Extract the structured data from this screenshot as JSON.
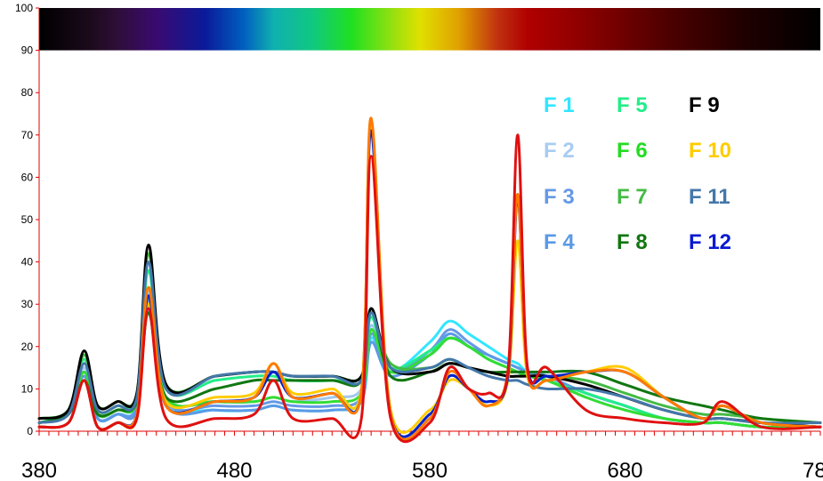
{
  "chart_data": {
    "type": "line",
    "title": "",
    "xlabel": "",
    "ylabel": "",
    "xlim": [
      380,
      780
    ],
    "ylim": [
      0,
      100
    ],
    "x_ticks": [
      "380",
      "480",
      "580",
      "680",
      "780"
    ],
    "y_ticks": [
      "0",
      "10",
      "20",
      "30",
      "40",
      "50",
      "60",
      "70",
      "80",
      "90",
      "100"
    ],
    "grid": false,
    "legend_position": "top-right",
    "spectrum_band": {
      "y_range": [
        90,
        100
      ],
      "stops": [
        {
          "x": 380,
          "color": "#000000"
        },
        {
          "x": 405,
          "color": "#1a0a1a"
        },
        {
          "x": 420,
          "color": "#2e0e38"
        },
        {
          "x": 440,
          "color": "#3a0a70"
        },
        {
          "x": 465,
          "color": "#0a1a9a"
        },
        {
          "x": 485,
          "color": "#0060c0"
        },
        {
          "x": 500,
          "color": "#10b0b0"
        },
        {
          "x": 520,
          "color": "#10c880"
        },
        {
          "x": 540,
          "color": "#20e020"
        },
        {
          "x": 560,
          "color": "#90e010"
        },
        {
          "x": 575,
          "color": "#e0e000"
        },
        {
          "x": 595,
          "color": "#e0a000"
        },
        {
          "x": 615,
          "color": "#c03010"
        },
        {
          "x": 630,
          "color": "#b00000"
        },
        {
          "x": 660,
          "color": "#8a0000"
        },
        {
          "x": 700,
          "color": "#500000"
        },
        {
          "x": 740,
          "color": "#200000"
        },
        {
          "x": 780,
          "color": "#000000"
        }
      ]
    },
    "x": [
      380,
      395,
      403,
      410,
      420,
      430,
      436,
      445,
      470,
      490,
      500,
      510,
      530,
      545,
      550,
      560,
      580,
      590,
      600,
      610,
      620,
      625,
      630,
      640,
      660,
      680,
      700,
      720,
      730,
      750,
      780
    ],
    "series": [
      {
        "name": "F 1",
        "color": "#33e6ff",
        "values": [
          2,
          4,
          14,
          3,
          4,
          6,
          30,
          7,
          5,
          5,
          6,
          5,
          5,
          7,
          22,
          14,
          21,
          26,
          23,
          20,
          17,
          16,
          14,
          13,
          9,
          6,
          3,
          2,
          2,
          1,
          1
        ]
      },
      {
        "name": "F 2",
        "color": "#a0c8f0",
        "values": [
          2,
          4,
          15,
          4,
          5,
          7,
          33,
          8,
          7,
          7,
          8,
          7,
          8,
          10,
          25,
          15,
          18,
          22,
          20,
          17,
          15,
          14,
          13,
          12,
          8,
          5,
          3,
          2,
          2,
          1,
          1
        ]
      },
      {
        "name": "F 3",
        "color": "#6699e6",
        "values": [
          2,
          4,
          14,
          3,
          4,
          6,
          31,
          7,
          6,
          6,
          7,
          6,
          6,
          8,
          23,
          14,
          19,
          24,
          21,
          18,
          16,
          15,
          14,
          13,
          9,
          6,
          3,
          2,
          2,
          1,
          1
        ]
      },
      {
        "name": "F 4",
        "color": "#5a9ae6",
        "values": [
          2,
          4,
          13,
          3,
          4,
          5,
          29,
          6,
          5,
          5,
          6,
          5,
          5,
          7,
          21,
          13,
          18,
          23,
          20,
          18,
          16,
          15,
          14,
          13,
          9,
          6,
          3,
          2,
          2,
          1,
          1
        ]
      },
      {
        "name": "F 5",
        "color": "#22ee88",
        "values": [
          2,
          5,
          17,
          5,
          6,
          8,
          38,
          10,
          12,
          13,
          13,
          12,
          12,
          13,
          27,
          15,
          19,
          22,
          20,
          17,
          15,
          14,
          13,
          12,
          9,
          6,
          3,
          2,
          2,
          1,
          1
        ]
      },
      {
        "name": "F 6",
        "color": "#33dd33",
        "values": [
          2,
          4,
          14,
          4,
          5,
          7,
          32,
          8,
          7,
          7,
          8,
          7,
          7,
          9,
          24,
          14,
          18,
          22,
          20,
          17,
          15,
          14,
          13,
          12,
          8,
          5,
          3,
          2,
          2,
          1,
          1
        ]
      },
      {
        "name": "F 7",
        "color": "#44bb44",
        "values": [
          3,
          5,
          18,
          6,
          7,
          9,
          42,
          11,
          13,
          14,
          14,
          13,
          13,
          13,
          28,
          16,
          15,
          17,
          15,
          14,
          13,
          13,
          13,
          13,
          12,
          9,
          6,
          4,
          4,
          3,
          2
        ]
      },
      {
        "name": "F 8",
        "color": "#117711",
        "values": [
          2,
          4,
          12,
          4,
          5,
          7,
          28,
          8,
          10,
          12,
          12,
          12,
          12,
          12,
          29,
          13,
          14,
          16,
          15,
          14,
          14,
          14,
          14,
          14,
          14,
          11,
          8,
          6,
          5,
          3,
          2
        ]
      },
      {
        "name": "F 9",
        "color": "#000000",
        "values": [
          3,
          5,
          19,
          6,
          7,
          9,
          44,
          11,
          13,
          14,
          14,
          13,
          13,
          13,
          29,
          15,
          14,
          16,
          15,
          14,
          13,
          13,
          13,
          13,
          11,
          8,
          5,
          3,
          3,
          2,
          1
        ]
      },
      {
        "name": "F 10",
        "color": "#ffcc00",
        "values": [
          1,
          2,
          12,
          1,
          2,
          3,
          30,
          7,
          8,
          9,
          16,
          9,
          10,
          10,
          73,
          5,
          5,
          12,
          10,
          6,
          12,
          45,
          13,
          12,
          14,
          15,
          8,
          3,
          6,
          2,
          1
        ]
      },
      {
        "name": "F 11",
        "color": "#4477aa",
        "values": [
          2,
          4,
          16,
          5,
          6,
          8,
          40,
          10,
          13,
          14,
          14,
          13,
          13,
          12,
          28,
          15,
          15,
          17,
          15,
          13,
          12,
          12,
          11,
          10,
          10,
          8,
          5,
          3,
          3,
          2,
          2
        ]
      },
      {
        "name": "F 12",
        "color": "#0022cc",
        "values": [
          1,
          2,
          12,
          1,
          2,
          4,
          32,
          6,
          7,
          8,
          14,
          8,
          9,
          9,
          71,
          4,
          4,
          13,
          10,
          7,
          13,
          55,
          15,
          13,
          14,
          14,
          8,
          3,
          6,
          2,
          1
        ]
      },
      {
        "name": "",
        "color": "#ff7a00",
        "values": [
          1,
          2,
          12,
          1,
          2,
          4,
          34,
          6,
          7,
          8,
          16,
          8,
          9,
          9,
          74,
          4,
          3,
          14,
          10,
          6,
          14,
          56,
          14,
          12,
          14,
          14,
          8,
          3,
          6,
          2,
          1
        ]
      },
      {
        "name": "",
        "color": "#e01010",
        "values": [
          1,
          2,
          12,
          1,
          2,
          3,
          29,
          3,
          3,
          4,
          12,
          3,
          3,
          3,
          65,
          3,
          2,
          15,
          10,
          9,
          14,
          70,
          15,
          15,
          5,
          3,
          2,
          2,
          7,
          1,
          1
        ]
      }
    ]
  },
  "legend": {
    "columns": [
      [
        {
          "label": "F 1",
          "color": "#33e6ff"
        },
        {
          "label": "F 2",
          "color": "#a8ccf2"
        },
        {
          "label": "F 3",
          "color": "#6699e6"
        },
        {
          "label": "F 4",
          "color": "#5a9ae6"
        }
      ],
      [
        {
          "label": "F 5",
          "color": "#22ee88"
        },
        {
          "label": "F 6",
          "color": "#22dd22"
        },
        {
          "label": "F 7",
          "color": "#44bb44"
        },
        {
          "label": "F 8",
          "color": "#117711"
        }
      ],
      [
        {
          "label": "F 9",
          "color": "#000000"
        },
        {
          "label": "F 10",
          "color": "#ffcc00"
        },
        {
          "label": "F 11",
          "color": "#4477aa"
        },
        {
          "label": "F 12",
          "color": "#0a1ad0"
        }
      ]
    ]
  }
}
